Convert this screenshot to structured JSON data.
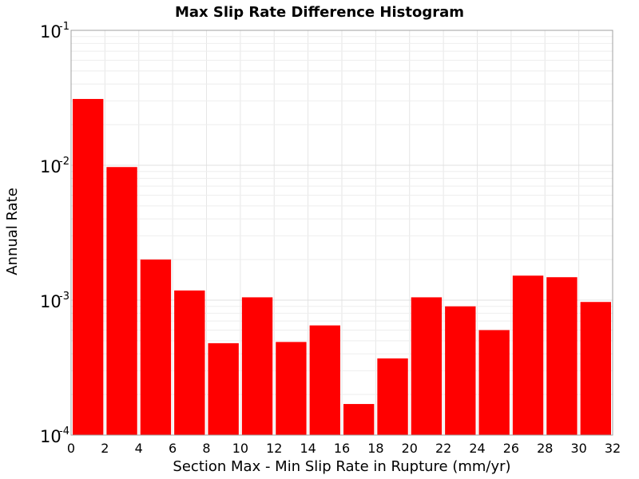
{
  "chart_data": {
    "type": "bar",
    "title": "Max Slip Rate Difference Histogram",
    "xlabel": "Section Max - Min Slip Rate in Rupture (mm/yr)",
    "ylabel": "Annual Rate",
    "yscale": "log",
    "xlim": [
      0,
      32
    ],
    "ylim": [
      0.0001,
      0.1
    ],
    "bin_width": 2,
    "x_ticks": [
      0,
      2,
      4,
      6,
      8,
      10,
      12,
      14,
      16,
      18,
      20,
      22,
      24,
      26,
      28,
      30,
      32
    ],
    "y_ticks": [
      {
        "base": "10",
        "exp": "-4",
        "value": 0.0001
      },
      {
        "base": "10",
        "exp": "-3",
        "value": 0.001
      },
      {
        "base": "10",
        "exp": "-2",
        "value": 0.01
      },
      {
        "base": "10",
        "exp": "-1",
        "value": 0.1
      }
    ],
    "grid": true,
    "bar_color": "#ff0000",
    "bins": [
      0,
      2,
      4,
      6,
      8,
      10,
      12,
      14,
      16,
      18,
      20,
      22,
      24,
      26,
      28,
      30
    ],
    "values": [
      0.031,
      0.0097,
      0.002,
      0.00118,
      0.00048,
      0.00105,
      0.00049,
      0.00065,
      0.00017,
      0.00037,
      0.00105,
      0.0009,
      0.0006,
      0.00152,
      0.00148,
      0.00097
    ]
  }
}
